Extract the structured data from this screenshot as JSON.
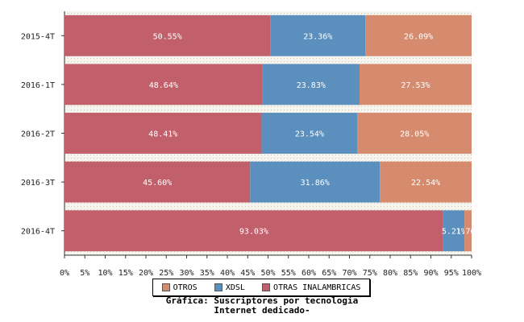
{
  "chart_data": {
    "type": "bar",
    "orientation": "horizontal",
    "stacked": true,
    "categories": [
      "2015-4T",
      "2016-1T",
      "2016-2T",
      "2016-3T",
      "2016-4T"
    ],
    "series": [
      {
        "name": "OTRAS INALAMBRICAS",
        "color": "#c15f6b",
        "values": [
          50.55,
          48.64,
          48.41,
          45.6,
          93.03
        ],
        "labels": [
          "50.55%",
          "48.64%",
          "48.41%",
          "45.60%",
          "93.03%"
        ]
      },
      {
        "name": "XDSL",
        "color": "#5b8fbd",
        "values": [
          23.36,
          23.83,
          23.54,
          31.86,
          5.21
        ],
        "labels": [
          "23.36%",
          "23.83%",
          "23.54%",
          "31.86%",
          "5.21%"
        ]
      },
      {
        "name": "OTROS",
        "color": "#d68b6f",
        "values": [
          26.09,
          27.53,
          28.05,
          22.54,
          1.76
        ],
        "labels": [
          "26.09%",
          "27.53%",
          "28.05%",
          "22.54%",
          "1.76%"
        ]
      }
    ],
    "xlim": [
      0,
      100
    ],
    "xticks": [
      "0%",
      "5%",
      "10%",
      "15%",
      "20%",
      "25%",
      "30%",
      "35%",
      "40%",
      "45%",
      "50%",
      "55%",
      "60%",
      "65%",
      "70%",
      "75%",
      "80%",
      "85%",
      "90%",
      "95%",
      "100%"
    ],
    "legend": {
      "placement": "bottom",
      "items": [
        {
          "name": "OTROS",
          "color": "#d68b6f"
        },
        {
          "name": "XDSL",
          "color": "#5b8fbd"
        },
        {
          "name": "OTRAS INALAMBRICAS",
          "color": "#c15f6b"
        }
      ]
    },
    "caption_line1": "Gráfica: Suscriptores por tecnologia",
    "caption_line2": "Internet dedicado-"
  }
}
